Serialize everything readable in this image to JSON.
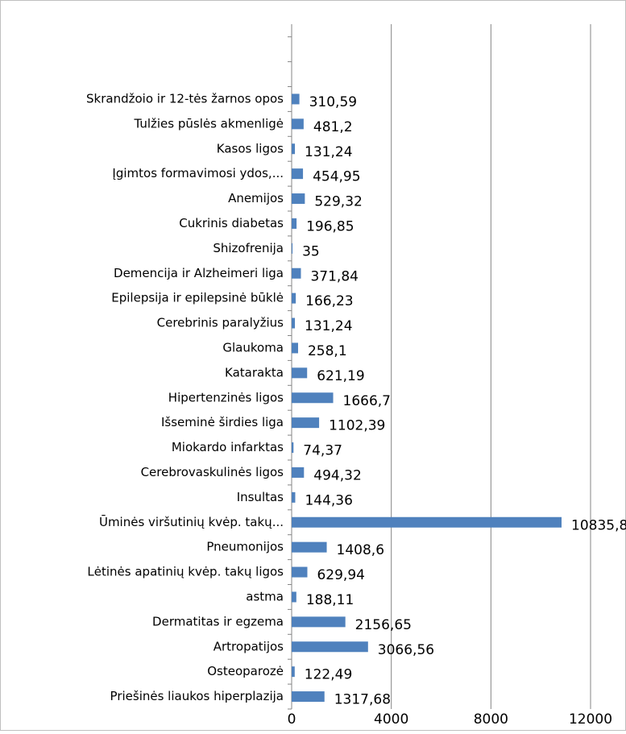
{
  "chart_data": {
    "type": "bar",
    "orientation": "horizontal",
    "categories": [
      "Skrandžoio ir 12-tės žarnos opos",
      "Tulžies pūslės akmenligė",
      "Kasos ligos",
      "Įgimtos formavimosi ydos,...",
      "Anemijos",
      "Cukrinis diabetas",
      "Shizofrenija",
      "Demencija ir Alzheimeri liga",
      "Epilepsija ir epilepsinė būklė",
      "Cerebrinis paralyžius",
      "Glaukoma",
      "Katarakta",
      "Hipertenzinės ligos",
      "Išseminė širdies liga",
      "Miokardo infarktas",
      "Cerebrovaskulinės ligos",
      "Insultas",
      "Ūminės viršutinių kvėp. takų...",
      "Pneumonijos",
      "Lėtinės apatinių kvėp. takų ligos",
      "astma",
      "Dermatitas ir egzema",
      "Artropatijos",
      "Osteoparozė",
      "Priešinės liaukos hiperplazija"
    ],
    "values": [
      310.59,
      481.2,
      131.24,
      454.95,
      529.32,
      196.85,
      35,
      371.84,
      166.23,
      131.24,
      258.1,
      621.19,
      1666.7,
      1102.39,
      74.37,
      494.32,
      144.36,
      10835.8,
      1408.6,
      629.94,
      188.11,
      2156.65,
      3066.56,
      122.49,
      1317.68
    ],
    "value_labels": [
      "310,59",
      "481,2",
      "131,24",
      "454,95",
      "529,32",
      "196,85",
      "35",
      "371,84",
      "166,23",
      "131,24",
      "258,1",
      "621,19",
      "1666,7",
      "1102,39",
      "74,37",
      "494,32",
      "144,36",
      "10835,8",
      "1408,6",
      "629,94",
      "188,11",
      "2156,65",
      "3066,56",
      "122,49",
      "1317,68"
    ],
    "color": "#4f81bd",
    "xlim": [
      0,
      12000
    ],
    "xticks": [
      0,
      4000,
      8000,
      12000
    ],
    "grid": true
  }
}
